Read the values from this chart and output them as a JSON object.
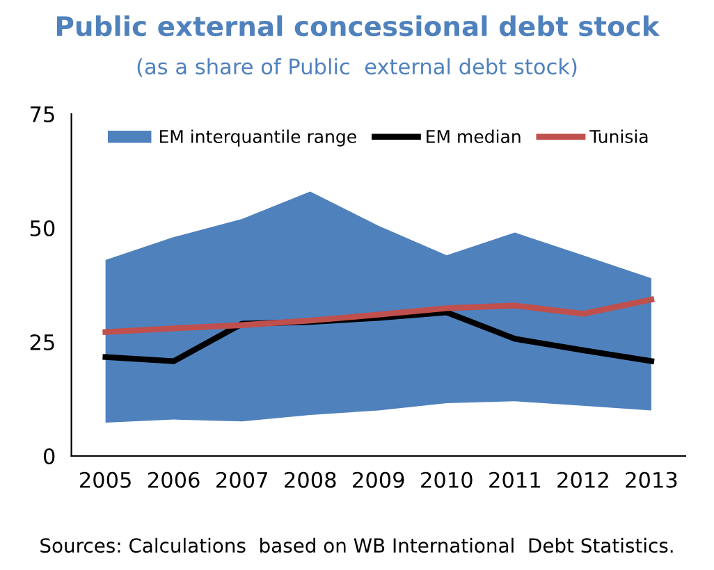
{
  "chart_data": {
    "type": "line",
    "title": "Public external concessional debt stock",
    "subtitle": "(as a share of Public  external debt stock)",
    "categories": [
      "2005",
      "2006",
      "2007",
      "2008",
      "2009",
      "2010",
      "2011",
      "2012",
      "2013"
    ],
    "series": [
      {
        "name": "EM interquantile range",
        "color": "#4f81bd",
        "values": [
          null,
          null,
          null,
          null,
          null,
          null,
          null,
          null,
          null
        ],
        "lower": [
          7.3,
          8,
          7.6,
          9,
          10,
          11.6,
          12,
          11,
          10
        ],
        "upper": [
          43,
          48,
          52,
          58,
          50.5,
          44,
          49,
          44,
          39
        ]
      },
      {
        "name": "EM median",
        "color": "#000000",
        "values": [
          21.7,
          20.8,
          29,
          29.4,
          30.3,
          31.5,
          25.7,
          23.2,
          20.8
        ]
      },
      {
        "name": "Tunisia",
        "color": "#c0504d",
        "values": [
          27.2,
          28,
          28.7,
          29.7,
          31,
          32.4,
          33,
          31.2,
          34.3
        ]
      }
    ],
    "ylim": [
      0,
      75
    ],
    "yticks": [
      0,
      25,
      50,
      75
    ],
    "grid": false,
    "legend": "top",
    "annotations": [
      "Sources: Calculations  based on WB International  Debt Statistics."
    ]
  }
}
